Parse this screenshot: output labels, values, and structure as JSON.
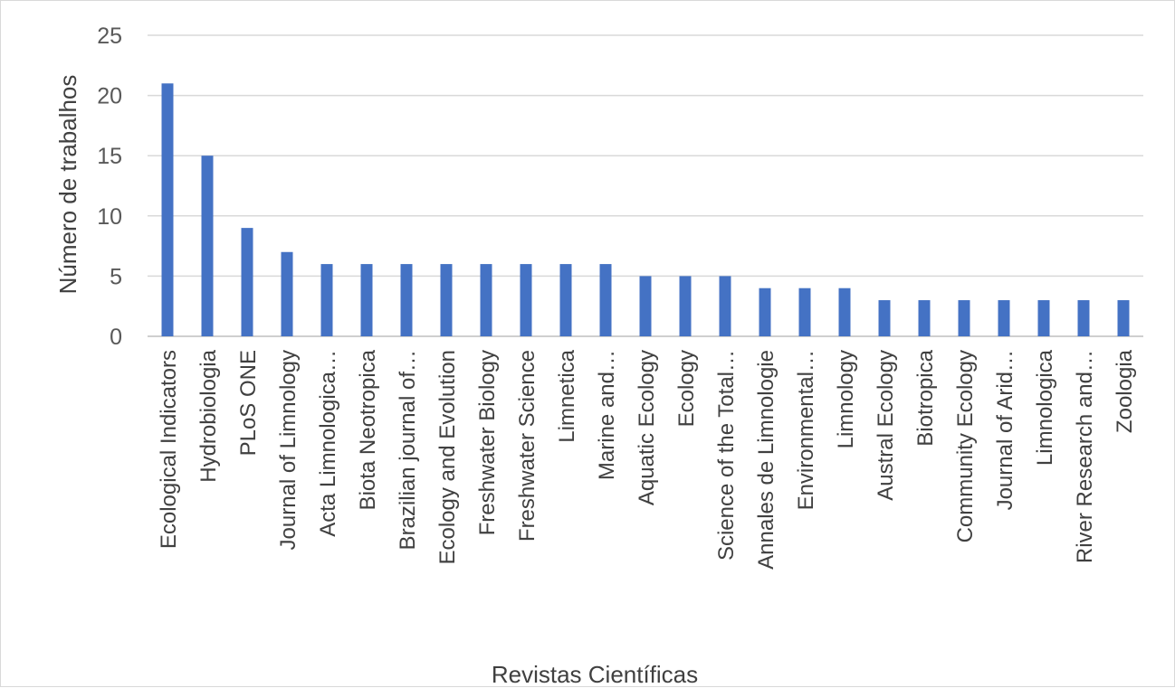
{
  "chart_data": {
    "type": "bar",
    "title": "",
    "xlabel": "Revistas Científicas",
    "ylabel": "Número de trabalhos",
    "ylim": [
      0,
      25
    ],
    "yticks": [
      0,
      5,
      10,
      15,
      20,
      25
    ],
    "grid": true,
    "legend": "none",
    "bar_color": "#4472c4",
    "categories": [
      "Ecological Indicators",
      "Hydrobiologia",
      "PLoS ONE",
      "Journal of Limnology",
      "Acta Limnologica…",
      "Biota Neotropica",
      "Brazilian journal of…",
      "Ecology and Evolution",
      "Freshwater Biology",
      "Freshwater Science",
      "Limnetica",
      "Marine and…",
      "Aquatic Ecology",
      "Ecology",
      "Science of the Total…",
      "Annales de Limnologie",
      "Environmental…",
      "Limnology",
      "Austral Ecology",
      "Biotropica",
      "Community Ecology",
      "Journal of Arid…",
      "Limnologica",
      "River Research and…",
      "Zoologia"
    ],
    "values": [
      21,
      15,
      9,
      7,
      6,
      6,
      6,
      6,
      6,
      6,
      6,
      6,
      5,
      5,
      5,
      4,
      4,
      4,
      3,
      3,
      3,
      3,
      3,
      3,
      3
    ]
  }
}
